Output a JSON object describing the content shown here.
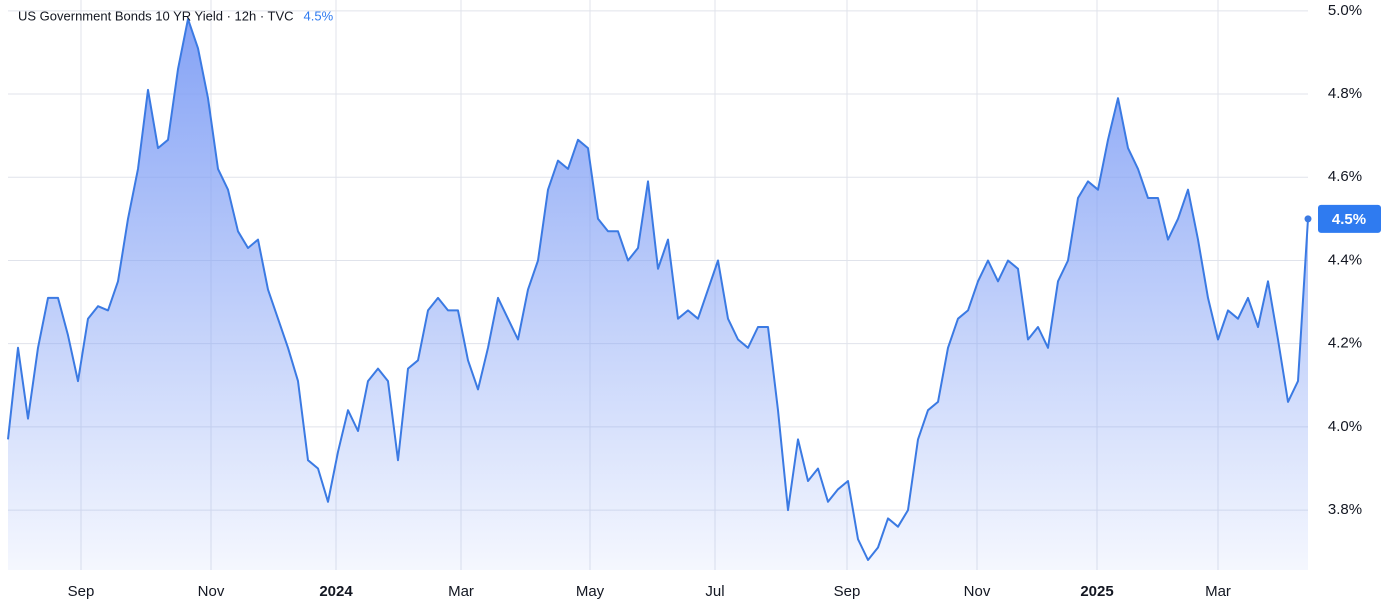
{
  "chart_data": {
    "type": "area",
    "title": "US Government Bonds 10 YR Yield · 12h · TVC",
    "last_value": {
      "value": 4.5,
      "label": "4.5%"
    },
    "x": [
      0,
      1,
      2,
      3,
      4,
      5,
      6,
      7,
      8,
      9,
      10,
      11,
      12,
      13,
      14,
      15,
      16,
      17,
      18,
      19,
      20,
      21,
      22,
      23,
      24,
      25,
      26,
      27,
      28,
      29,
      30,
      31,
      32,
      33,
      34,
      35,
      36,
      37,
      38,
      39,
      40,
      41,
      42,
      43,
      44,
      45,
      46,
      47,
      48,
      49,
      50,
      51,
      52,
      53,
      54,
      55,
      56,
      57,
      58,
      59,
      60,
      61,
      62,
      63,
      64,
      65,
      66,
      67,
      68,
      69,
      70,
      71,
      72,
      73,
      74,
      75,
      76,
      77,
      78,
      79,
      80,
      81,
      82,
      83,
      84,
      85,
      86,
      87,
      88,
      89,
      90,
      91,
      92,
      93,
      94,
      95,
      96,
      97,
      98,
      99,
      100,
      101,
      102,
      103,
      104,
      105,
      106,
      107,
      108,
      109,
      110,
      111,
      112,
      113,
      114,
      115,
      116,
      117,
      118,
      119,
      120,
      121,
      122,
      123,
      124,
      125,
      126,
      127,
      128,
      129,
      130
    ],
    "series": [
      {
        "name": "US Government Bonds 10 YR Yield",
        "color": "#3b7ae3",
        "values": [
          3.97,
          4.19,
          4.02,
          4.19,
          4.31,
          4.31,
          4.22,
          4.11,
          4.26,
          4.29,
          4.28,
          4.35,
          4.5,
          4.62,
          4.81,
          4.67,
          4.69,
          4.86,
          4.98,
          4.91,
          4.79,
          4.62,
          4.57,
          4.47,
          4.43,
          4.45,
          4.33,
          4.26,
          4.19,
          4.11,
          3.92,
          3.9,
          3.82,
          3.94,
          4.04,
          3.99,
          4.11,
          4.14,
          4.11,
          3.92,
          4.14,
          4.16,
          4.28,
          4.31,
          4.28,
          4.28,
          4.16,
          4.09,
          4.19,
          4.31,
          4.26,
          4.21,
          4.33,
          4.4,
          4.57,
          4.64,
          4.62,
          4.69,
          4.67,
          4.5,
          4.47,
          4.47,
          4.4,
          4.43,
          4.59,
          4.38,
          4.45,
          4.26,
          4.28,
          4.26,
          4.33,
          4.4,
          4.26,
          4.21,
          4.19,
          4.24,
          4.24,
          4.04,
          3.8,
          3.97,
          3.87,
          3.9,
          3.82,
          3.85,
          3.87,
          3.73,
          3.68,
          3.71,
          3.78,
          3.76,
          3.8,
          3.97,
          4.04,
          4.06,
          4.19,
          4.26,
          4.28,
          4.35,
          4.4,
          4.35,
          4.4,
          4.38,
          4.21,
          4.24,
          4.19,
          4.35,
          4.4,
          4.55,
          4.59,
          4.57,
          4.69,
          4.79,
          4.67,
          4.62,
          4.55,
          4.55,
          4.45,
          4.5,
          4.57,
          4.45,
          4.31,
          4.21,
          4.28,
          4.26,
          4.31,
          4.24,
          4.35,
          4.21,
          4.06,
          4.11,
          4.5
        ]
      }
    ],
    "xlim": [
      0,
      130
    ],
    "xticks": [
      {
        "value": 7.3,
        "label": "Sep"
      },
      {
        "value": 20.3,
        "label": "Nov"
      },
      {
        "value": 32.8,
        "label": "2024"
      },
      {
        "value": 45.3,
        "label": "Mar"
      },
      {
        "value": 58.2,
        "label": "May"
      },
      {
        "value": 70.7,
        "label": "Jul"
      },
      {
        "value": 83.9,
        "label": "Sep"
      },
      {
        "value": 96.9,
        "label": "Nov"
      },
      {
        "value": 108.9,
        "label": "2025"
      },
      {
        "value": 121,
        "label": "Mar"
      }
    ],
    "ylim": [
      3.656,
      5.026
    ],
    "yticks": [
      {
        "value": 3.8,
        "label": "3.8%"
      },
      {
        "value": 4.0,
        "label": "4.0%"
      },
      {
        "value": 4.2,
        "label": "4.2%"
      },
      {
        "value": 4.4,
        "label": "4.4%"
      },
      {
        "value": 4.6,
        "label": "4.6%"
      },
      {
        "value": 4.8,
        "label": "4.8%"
      },
      {
        "value": 5.0,
        "label": "5.0%"
      }
    ],
    "grid": true
  }
}
